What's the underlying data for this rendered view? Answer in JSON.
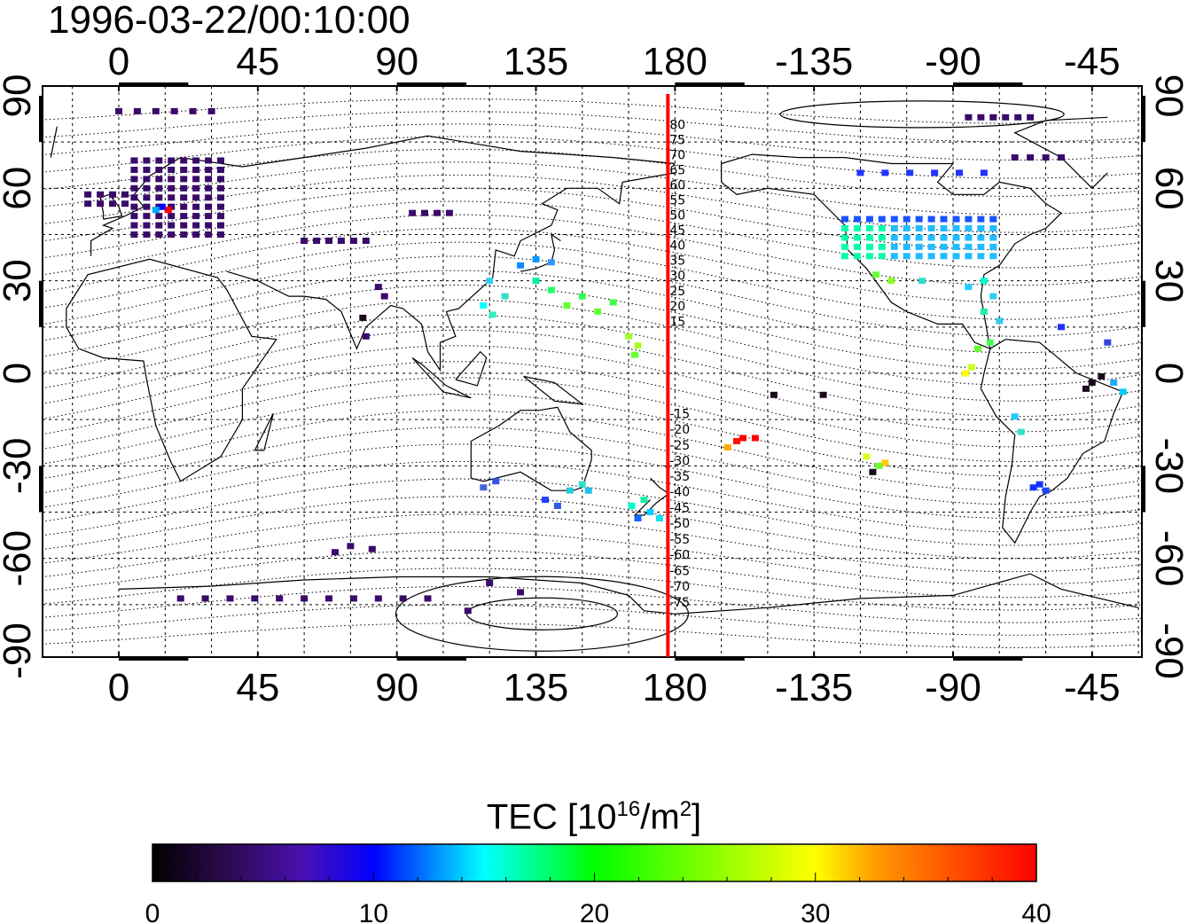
{
  "title": "1996-03-22/00:10:00",
  "map": {
    "lon_ticks": [
      "0",
      "45",
      "90",
      "135",
      "180",
      "-135",
      "-90",
      "-45"
    ],
    "lat_ticks": [
      "90",
      "60",
      "30",
      "0",
      "-30",
      "-60",
      "-90"
    ],
    "meridian_marker_lon": 180,
    "meridian_marker_color": "#ff0000",
    "mag_lat_labels": [
      "80",
      "75",
      "70",
      "65",
      "60",
      "55",
      "50",
      "45",
      "40",
      "35",
      "30",
      "25",
      "20",
      "15",
      "-15",
      "-20",
      "-25",
      "-30",
      "-35",
      "-40",
      "-45",
      "-50",
      "-55",
      "-60",
      "-65",
      "-70",
      "-75"
    ]
  },
  "colorbar": {
    "label_prefix": "TEC  [10",
    "label_exp1": "16",
    "label_mid": "/m",
    "label_exp2": "2",
    "label_suffix": "]",
    "ticks": [
      "0",
      "10",
      "20",
      "30",
      "40"
    ],
    "range": [
      0,
      40
    ],
    "colors": [
      "#000000",
      "#3a0a6a",
      "#0000ff",
      "#00ffff",
      "#00ff00",
      "#ffff00",
      "#ff0000"
    ]
  }
}
